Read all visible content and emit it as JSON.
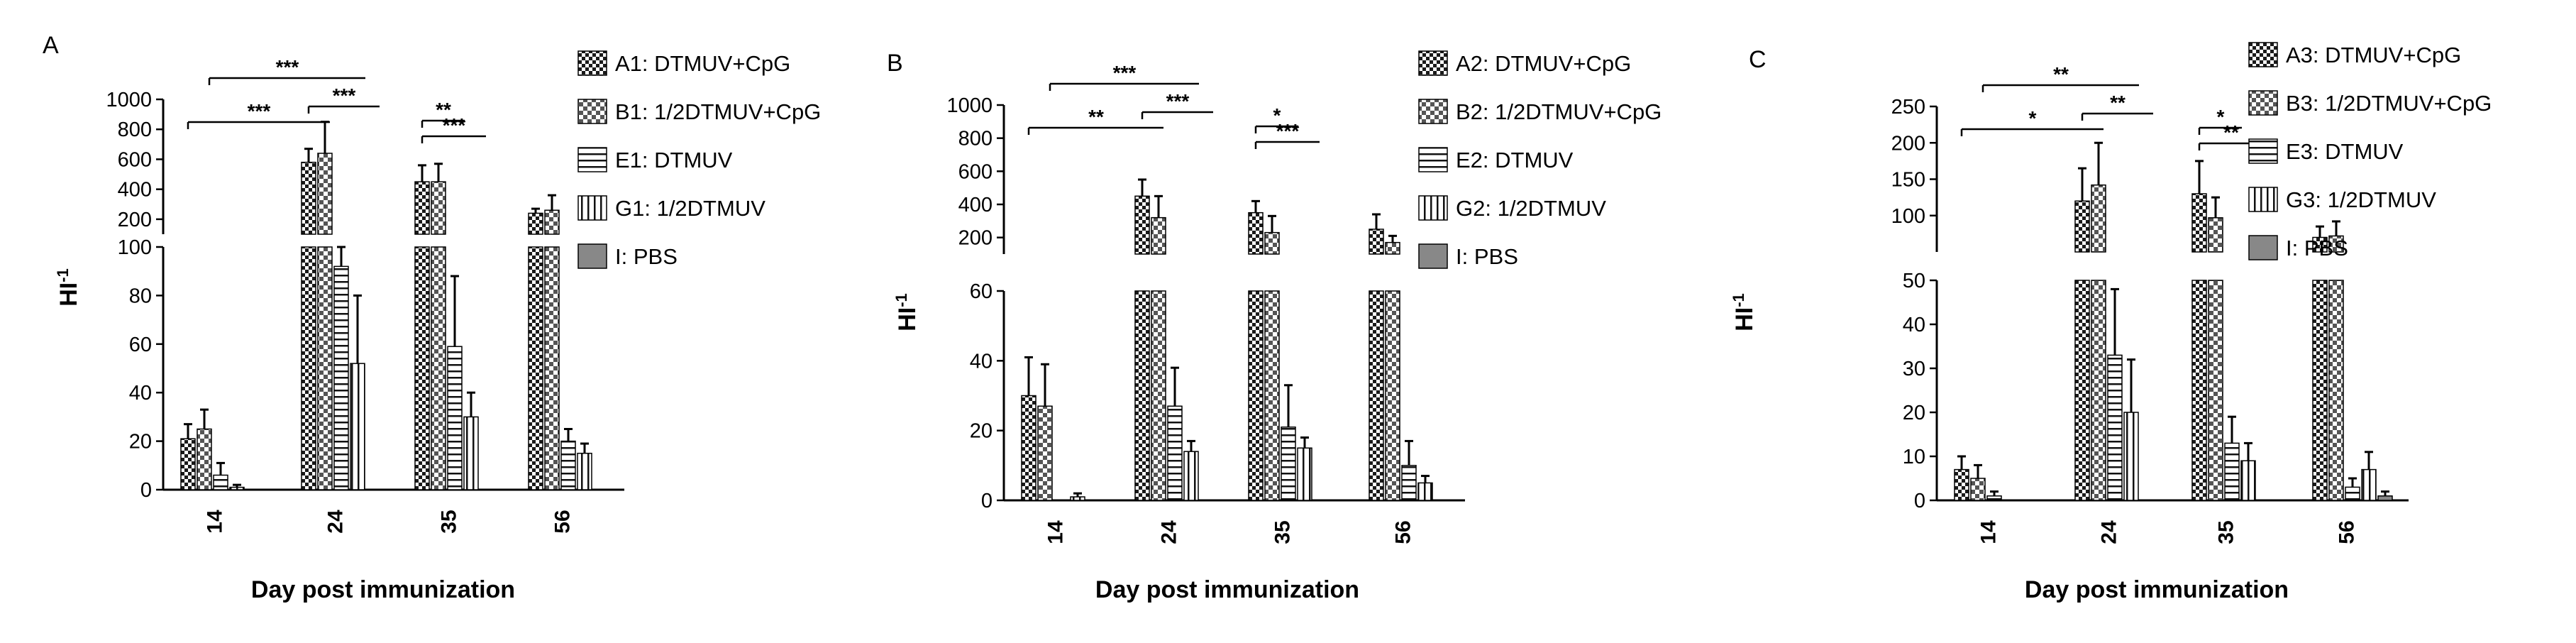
{
  "chart_data": [
    {
      "panel_label": "A",
      "type": "bar",
      "broken_axis": true,
      "xlabel": "Day post immunization",
      "ylabel": "HI",
      "ylabel_sup": "-1",
      "categories": [
        "14",
        "24",
        "35",
        "56"
      ],
      "lower_axis": {
        "ylim": [
          0,
          100
        ],
        "ticks": [
          0,
          20,
          40,
          60,
          80,
          100
        ]
      },
      "upper_axis": {
        "ylim": [
          100,
          1000
        ],
        "ticks": [
          200,
          400,
          600,
          800,
          1000
        ]
      },
      "series": [
        {
          "name": "A1: DTMUV+CpG",
          "pattern": "checker",
          "values": [
            21,
            580,
            450,
            240
          ],
          "errors": [
            6,
            90,
            110,
            30
          ]
        },
        {
          "name": "B1: 1/2DTMUV+CpG",
          "pattern": "checker-light",
          "values": [
            25,
            640,
            450,
            260
          ],
          "errors": [
            8,
            210,
            120,
            100
          ]
        },
        {
          "name": "E1: DTMUV",
          "pattern": "horizontal",
          "values": [
            6,
            92,
            59,
            20
          ],
          "errors": [
            5,
            8,
            29,
            5
          ]
        },
        {
          "name": "G1: 1/2DTMUV",
          "pattern": "vertical",
          "values": [
            1,
            52,
            30,
            15
          ],
          "errors": [
            1,
            28,
            10,
            4
          ]
        },
        {
          "name": "I: PBS",
          "pattern": "solid",
          "values": [
            0,
            0,
            0,
            0
          ],
          "errors": [
            0,
            0,
            0,
            0
          ]
        }
      ],
      "significance": [
        "***",
        "***",
        "***",
        "**",
        "***"
      ]
    },
    {
      "panel_label": "B",
      "type": "bar",
      "broken_axis": true,
      "xlabel": "Day post immunization",
      "ylabel": "HI",
      "ylabel_sup": "-1",
      "categories": [
        "14",
        "24",
        "35",
        "56"
      ],
      "lower_axis": {
        "ylim": [
          0,
          60
        ],
        "ticks": [
          0,
          20,
          40,
          60
        ]
      },
      "upper_axis": {
        "ylim": [
          100,
          1000
        ],
        "ticks": [
          200,
          400,
          600,
          800,
          1000
        ]
      },
      "series": [
        {
          "name": "A2: DTMUV+CpG",
          "pattern": "checker",
          "values": [
            30,
            450,
            350,
            250
          ],
          "errors": [
            11,
            100,
            70,
            90
          ]
        },
        {
          "name": "B2: 1/2DTMUV+CpG",
          "pattern": "checker-light",
          "values": [
            27,
            320,
            230,
            170
          ],
          "errors": [
            12,
            130,
            100,
            40
          ]
        },
        {
          "name": "E2: DTMUV",
          "pattern": "horizontal",
          "values": [
            0,
            27,
            21,
            10
          ],
          "errors": [
            0,
            11,
            12,
            7
          ]
        },
        {
          "name": "G2: 1/2DTMUV",
          "pattern": "vertical",
          "values": [
            1,
            14,
            15,
            5
          ],
          "errors": [
            1,
            3,
            3,
            2
          ]
        },
        {
          "name": "I: PBS",
          "pattern": "solid",
          "values": [
            0,
            0,
            0,
            0
          ],
          "errors": [
            0,
            0,
            0,
            0
          ]
        }
      ],
      "significance": [
        "**",
        "***",
        "***",
        "*",
        "***"
      ]
    },
    {
      "panel_label": "C",
      "type": "bar",
      "broken_axis": true,
      "xlabel": "Day post immunization",
      "ylabel": "HI",
      "ylabel_sup": "-1",
      "categories": [
        "14",
        "24",
        "35",
        "56"
      ],
      "lower_axis": {
        "ylim": [
          0,
          50
        ],
        "ticks": [
          0,
          10,
          20,
          30,
          40,
          50
        ]
      },
      "upper_axis": {
        "ylim": [
          50,
          250
        ],
        "ticks": [
          100,
          150,
          200,
          250
        ]
      },
      "series": [
        {
          "name": "A3: DTMUV+CpG",
          "pattern": "checker",
          "values": [
            7,
            120,
            130,
            70
          ],
          "errors": [
            3,
            45,
            45,
            15
          ]
        },
        {
          "name": "B3: 1/2DTMUV+CpG",
          "pattern": "checker-light",
          "values": [
            5,
            142,
            97,
            72
          ],
          "errors": [
            3,
            58,
            28,
            20
          ]
        },
        {
          "name": "E3: DTMUV",
          "pattern": "horizontal",
          "values": [
            1,
            33,
            13,
            3
          ],
          "errors": [
            1,
            15,
            6,
            2
          ]
        },
        {
          "name": "G3: 1/2DTMUV",
          "pattern": "vertical",
          "values": [
            0,
            20,
            9,
            7
          ],
          "errors": [
            0,
            12,
            4,
            4
          ]
        },
        {
          "name": "I: PBS",
          "pattern": "solid",
          "values": [
            0,
            0,
            0,
            1
          ],
          "errors": [
            0,
            0,
            0,
            1
          ]
        }
      ],
      "significance": [
        "*",
        "**",
        "**",
        "*",
        "**"
      ]
    }
  ]
}
